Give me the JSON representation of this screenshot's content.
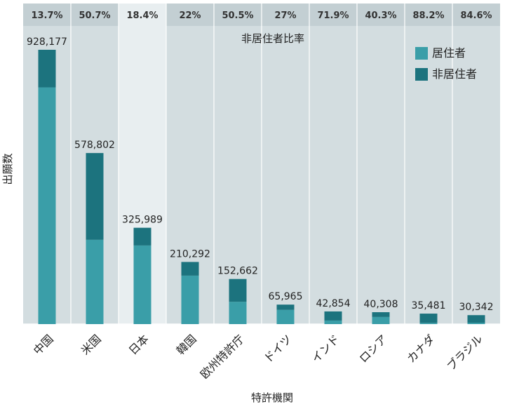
{
  "chart_data": {
    "type": "bar",
    "stacked": true,
    "categories": [
      "中国",
      "米国",
      "日本",
      "韓国",
      "欧州特許庁",
      "ドイツ",
      "インド",
      "ロシア",
      "カナダ",
      "ブラジル"
    ],
    "totals": [
      "928,177",
      "578,802",
      "325,989",
      "210,292",
      "152,662",
      "65,965",
      "42,854",
      "40,308",
      "35,481",
      "30,342"
    ],
    "nonresident_ratio": [
      "13.7%",
      "50.7%",
      "18.4%",
      "22%",
      "50.5%",
      "27%",
      "71.9%",
      "40.3%",
      "88.2%",
      "84.6%"
    ],
    "series": [
      {
        "name": "居住者",
        "values": [
          801027,
          285228,
          266050,
          164028,
          75541,
          48159,
          12041,
          24064,
          4185,
          4673
        ]
      },
      {
        "name": "非居住者",
        "values": [
          127150,
          293574,
          59939,
          46264,
          77121,
          17806,
          30813,
          16244,
          31296,
          25669
        ]
      }
    ],
    "highlight_category": "日本",
    "xlabel": "特許機関",
    "ylabel": "出願数",
    "ratio_title": "非居住者比率",
    "ylim": [
      0,
      1080000
    ],
    "legend_position": "top-right",
    "colors": {
      "resident": "#3a9ea8",
      "nonresident": "#1c737e",
      "plot_bg": "#d3dde0",
      "highlight_bg": "#e8eef0",
      "ratio_band_bg": "#c3cfd3"
    }
  }
}
